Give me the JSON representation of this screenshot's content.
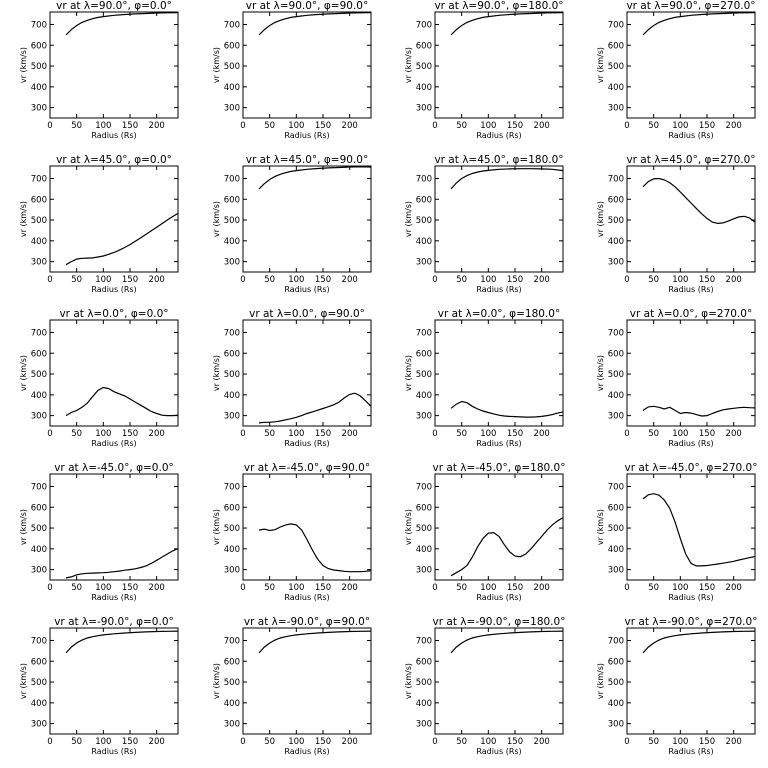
{
  "chart_data": [
    {
      "type": "line",
      "title": "vr at λ=90.0°, φ=0.0°",
      "xlabel": "Radius (Rs)",
      "ylabel": "vr (km/s)",
      "xlim": [
        0,
        240
      ],
      "ylim": [
        250,
        760
      ],
      "xticks": [
        0,
        50,
        100,
        150,
        200
      ],
      "yticks": [
        300,
        400,
        500,
        600,
        700
      ],
      "x": [
        30,
        40,
        50,
        60,
        70,
        80,
        90,
        100,
        120,
        140,
        160,
        180,
        200,
        220,
        240
      ],
      "y": [
        650,
        675,
        695,
        710,
        720,
        728,
        734,
        738,
        744,
        748,
        751,
        753,
        755,
        756,
        757
      ]
    },
    {
      "type": "line",
      "title": "vr at λ=90.0°, φ=90.0°",
      "xlabel": "Radius (Rs)",
      "ylabel": "vr (km/s)",
      "xlim": [
        0,
        240
      ],
      "ylim": [
        250,
        760
      ],
      "xticks": [
        0,
        50,
        100,
        150,
        200
      ],
      "yticks": [
        300,
        400,
        500,
        600,
        700
      ],
      "x": [
        30,
        40,
        50,
        60,
        70,
        80,
        90,
        100,
        120,
        140,
        160,
        180,
        200,
        220,
        240
      ],
      "y": [
        650,
        675,
        695,
        710,
        720,
        728,
        734,
        738,
        744,
        748,
        751,
        753,
        755,
        756,
        757
      ]
    },
    {
      "type": "line",
      "title": "vr at λ=90.0°, φ=180.0°",
      "xlabel": "Radius (Rs)",
      "ylabel": "vr (km/s)",
      "xlim": [
        0,
        240
      ],
      "ylim": [
        250,
        760
      ],
      "xticks": [
        0,
        50,
        100,
        150,
        200
      ],
      "yticks": [
        300,
        400,
        500,
        600,
        700
      ],
      "x": [
        30,
        40,
        50,
        60,
        70,
        80,
        90,
        100,
        120,
        140,
        160,
        180,
        200,
        220,
        240
      ],
      "y": [
        650,
        675,
        695,
        710,
        720,
        728,
        734,
        738,
        744,
        748,
        751,
        753,
        755,
        756,
        757
      ]
    },
    {
      "type": "line",
      "title": "vr at λ=90.0°, φ=270.0°",
      "xlabel": "Radius (Rs)",
      "ylabel": "vr (km/s)",
      "xlim": [
        0,
        240
      ],
      "ylim": [
        250,
        760
      ],
      "xticks": [
        0,
        50,
        100,
        150,
        200
      ],
      "yticks": [
        300,
        400,
        500,
        600,
        700
      ],
      "x": [
        30,
        40,
        50,
        60,
        70,
        80,
        90,
        100,
        120,
        140,
        160,
        180,
        200,
        220,
        240
      ],
      "y": [
        650,
        675,
        695,
        710,
        720,
        728,
        734,
        738,
        744,
        748,
        751,
        753,
        755,
        756,
        757
      ]
    },
    {
      "type": "line",
      "title": "vr at λ=45.0°, φ=0.0°",
      "xlabel": "Radius (Rs)",
      "ylabel": "vr (km/s)",
      "xlim": [
        0,
        240
      ],
      "ylim": [
        250,
        760
      ],
      "xticks": [
        0,
        50,
        100,
        150,
        200
      ],
      "yticks": [
        300,
        400,
        500,
        600,
        700
      ],
      "x": [
        30,
        40,
        50,
        60,
        70,
        80,
        90,
        100,
        110,
        120,
        130,
        140,
        150,
        160,
        170,
        180,
        190,
        200,
        210,
        220,
        230,
        240
      ],
      "y": [
        285,
        300,
        312,
        316,
        317,
        318,
        322,
        327,
        335,
        344,
        355,
        368,
        382,
        398,
        414,
        431,
        448,
        465,
        483,
        500,
        517,
        532
      ]
    },
    {
      "type": "line",
      "title": "vr at λ=45.0°, φ=90.0°",
      "xlabel": "Radius (Rs)",
      "ylabel": "vr (km/s)",
      "xlim": [
        0,
        240
      ],
      "ylim": [
        250,
        760
      ],
      "xticks": [
        0,
        50,
        100,
        150,
        200
      ],
      "yticks": [
        300,
        400,
        500,
        600,
        700
      ],
      "x": [
        30,
        40,
        50,
        60,
        70,
        80,
        90,
        100,
        120,
        140,
        160,
        180,
        200,
        220,
        240
      ],
      "y": [
        650,
        675,
        695,
        710,
        720,
        728,
        734,
        738,
        744,
        748,
        751,
        753,
        755,
        756,
        755
      ]
    },
    {
      "type": "line",
      "title": "vr at λ=45.0°, φ=180.0°",
      "xlabel": "Radius (Rs)",
      "ylabel": "vr (km/s)",
      "xlim": [
        0,
        240
      ],
      "ylim": [
        250,
        760
      ],
      "xticks": [
        0,
        50,
        100,
        150,
        200
      ],
      "yticks": [
        300,
        400,
        500,
        600,
        700
      ],
      "x": [
        30,
        40,
        50,
        60,
        70,
        80,
        90,
        100,
        120,
        140,
        160,
        180,
        200,
        220,
        240
      ],
      "y": [
        650,
        678,
        700,
        714,
        724,
        731,
        736,
        739,
        744,
        746,
        747,
        747,
        746,
        744,
        738
      ]
    },
    {
      "type": "line",
      "title": "vr at λ=45.0°, φ=270.0°",
      "xlabel": "Radius (Rs)",
      "ylabel": "vr (km/s)",
      "xlim": [
        0,
        240
      ],
      "ylim": [
        250,
        760
      ],
      "xticks": [
        0,
        50,
        100,
        150,
        200
      ],
      "yticks": [
        300,
        400,
        500,
        600,
        700
      ],
      "x": [
        30,
        40,
        50,
        60,
        70,
        80,
        90,
        100,
        110,
        120,
        130,
        140,
        150,
        160,
        170,
        180,
        190,
        200,
        210,
        220,
        230,
        240
      ],
      "y": [
        660,
        685,
        698,
        700,
        693,
        680,
        660,
        635,
        608,
        582,
        556,
        530,
        508,
        490,
        484,
        486,
        495,
        506,
        515,
        518,
        510,
        490
      ]
    },
    {
      "type": "line",
      "title": "vr at λ=0.0°, φ=0.0°",
      "xlabel": "Radius (Rs)",
      "ylabel": "vr (km/s)",
      "xlim": [
        0,
        240
      ],
      "ylim": [
        250,
        760
      ],
      "xticks": [
        0,
        50,
        100,
        150,
        200
      ],
      "yticks": [
        300,
        400,
        500,
        600,
        700
      ],
      "x": [
        30,
        40,
        50,
        60,
        70,
        80,
        90,
        100,
        110,
        120,
        130,
        140,
        150,
        160,
        170,
        180,
        190,
        200,
        210,
        220,
        230,
        240
      ],
      "y": [
        300,
        315,
        325,
        340,
        360,
        392,
        422,
        435,
        430,
        415,
        405,
        395,
        380,
        365,
        350,
        335,
        320,
        310,
        302,
        300,
        300,
        302
      ]
    },
    {
      "type": "line",
      "title": "vr at λ=0.0°, φ=90.0°",
      "xlabel": "Radius (Rs)",
      "ylabel": "vr (km/s)",
      "xlim": [
        0,
        240
      ],
      "ylim": [
        250,
        760
      ],
      "xticks": [
        0,
        50,
        100,
        150,
        200
      ],
      "yticks": [
        300,
        400,
        500,
        600,
        700
      ],
      "x": [
        30,
        40,
        50,
        60,
        70,
        80,
        90,
        100,
        110,
        120,
        130,
        140,
        150,
        160,
        170,
        180,
        190,
        200,
        210,
        220,
        230,
        240
      ],
      "y": [
        265,
        268,
        268,
        270,
        274,
        280,
        285,
        292,
        300,
        310,
        318,
        326,
        334,
        343,
        352,
        365,
        385,
        402,
        408,
        395,
        370,
        345
      ]
    },
    {
      "type": "line",
      "title": "vr at λ=0.0°, φ=180.0°",
      "xlabel": "Radius (Rs)",
      "ylabel": "vr (km/s)",
      "xlim": [
        0,
        240
      ],
      "ylim": [
        250,
        760
      ],
      "xticks": [
        0,
        50,
        100,
        150,
        200
      ],
      "yticks": [
        300,
        400,
        500,
        600,
        700
      ],
      "x": [
        30,
        40,
        50,
        60,
        70,
        80,
        90,
        100,
        110,
        120,
        130,
        140,
        150,
        160,
        170,
        180,
        190,
        200,
        210,
        220,
        230,
        240
      ],
      "y": [
        335,
        355,
        368,
        362,
        345,
        332,
        322,
        315,
        308,
        302,
        298,
        296,
        295,
        294,
        293,
        293,
        294,
        296,
        300,
        305,
        312,
        318
      ]
    },
    {
      "type": "line",
      "title": "vr at λ=0.0°, φ=270.0°",
      "xlabel": "Radius (Rs)",
      "ylabel": "vr (km/s)",
      "xlim": [
        0,
        240
      ],
      "ylim": [
        250,
        760
      ],
      "xticks": [
        0,
        50,
        100,
        150,
        200
      ],
      "yticks": [
        300,
        400,
        500,
        600,
        700
      ],
      "x": [
        30,
        40,
        50,
        60,
        70,
        80,
        90,
        100,
        110,
        120,
        130,
        140,
        150,
        160,
        170,
        180,
        190,
        200,
        210,
        220,
        230,
        240
      ],
      "y": [
        325,
        342,
        345,
        340,
        332,
        340,
        325,
        310,
        315,
        312,
        305,
        298,
        300,
        310,
        320,
        328,
        332,
        335,
        338,
        340,
        338,
        337
      ]
    },
    {
      "type": "line",
      "title": "vr at λ=-45.0°, φ=0.0°",
      "xlabel": "Radius (Rs)",
      "ylabel": "vr (km/s)",
      "xlim": [
        0,
        240
      ],
      "ylim": [
        250,
        760
      ],
      "xticks": [
        0,
        50,
        100,
        150,
        200
      ],
      "yticks": [
        300,
        400,
        500,
        600,
        700
      ],
      "x": [
        30,
        40,
        50,
        60,
        70,
        80,
        90,
        100,
        110,
        120,
        130,
        140,
        150,
        160,
        170,
        180,
        190,
        200,
        210,
        220,
        230,
        240
      ],
      "y": [
        260,
        265,
        275,
        280,
        282,
        283,
        284,
        285,
        287,
        290,
        293,
        297,
        300,
        304,
        310,
        318,
        330,
        345,
        360,
        375,
        390,
        402
      ]
    },
    {
      "type": "line",
      "title": "vr at λ=-45.0°, φ=90.0°",
      "xlabel": "Radius (Rs)",
      "ylabel": "vr (km/s)",
      "xlim": [
        0,
        240
      ],
      "ylim": [
        250,
        760
      ],
      "xticks": [
        0,
        50,
        100,
        150,
        200
      ],
      "yticks": [
        300,
        400,
        500,
        600,
        700
      ],
      "x": [
        30,
        40,
        50,
        60,
        70,
        80,
        90,
        100,
        110,
        120,
        130,
        140,
        150,
        160,
        170,
        180,
        190,
        200,
        210,
        220,
        230,
        240
      ],
      "y": [
        490,
        495,
        488,
        492,
        505,
        515,
        520,
        515,
        490,
        445,
        395,
        350,
        320,
        305,
        298,
        295,
        292,
        290,
        290,
        290,
        292,
        295
      ]
    },
    {
      "type": "line",
      "title": "vr at λ=-45.0°, φ=180.0°",
      "xlabel": "Radius (Rs)",
      "ylabel": "vr (km/s)",
      "xlim": [
        0,
        240
      ],
      "ylim": [
        250,
        760
      ],
      "xticks": [
        0,
        50,
        100,
        150,
        200
      ],
      "yticks": [
        300,
        400,
        500,
        600,
        700
      ],
      "x": [
        30,
        40,
        50,
        60,
        70,
        80,
        90,
        100,
        110,
        120,
        130,
        140,
        150,
        160,
        170,
        180,
        190,
        200,
        210,
        220,
        230,
        240
      ],
      "y": [
        270,
        285,
        300,
        320,
        360,
        410,
        450,
        475,
        478,
        460,
        420,
        385,
        365,
        362,
        375,
        400,
        430,
        460,
        490,
        515,
        535,
        550
      ]
    },
    {
      "type": "line",
      "title": "vr at λ=-45.0°, φ=270.0°",
      "xlabel": "Radius (Rs)",
      "ylabel": "vr (km/s)",
      "xlim": [
        0,
        240
      ],
      "ylim": [
        250,
        760
      ],
      "xticks": [
        0,
        50,
        100,
        150,
        200
      ],
      "yticks": [
        300,
        400,
        500,
        600,
        700
      ],
      "x": [
        30,
        40,
        50,
        60,
        70,
        80,
        90,
        100,
        110,
        120,
        130,
        140,
        150,
        160,
        170,
        180,
        190,
        200,
        210,
        220,
        230,
        240
      ],
      "y": [
        640,
        660,
        665,
        658,
        635,
        595,
        530,
        450,
        375,
        330,
        318,
        318,
        320,
        323,
        327,
        331,
        335,
        340,
        346,
        352,
        358,
        363
      ]
    },
    {
      "type": "line",
      "title": "vr at λ=-90.0°, φ=0.0°",
      "xlabel": "Radius (Rs)",
      "ylabel": "vr (km/s)",
      "xlim": [
        0,
        240
      ],
      "ylim": [
        250,
        760
      ],
      "xticks": [
        0,
        50,
        100,
        150,
        200
      ],
      "yticks": [
        300,
        400,
        500,
        600,
        700
      ],
      "x": [
        30,
        40,
        50,
        60,
        70,
        80,
        90,
        100,
        120,
        140,
        160,
        180,
        200,
        220,
        240
      ],
      "y": [
        640,
        668,
        688,
        702,
        712,
        718,
        723,
        727,
        732,
        736,
        739,
        741,
        743,
        744,
        745
      ]
    },
    {
      "type": "line",
      "title": "vr at λ=-90.0°, φ=90.0°",
      "xlabel": "Radius (Rs)",
      "ylabel": "vr (km/s)",
      "xlim": [
        0,
        240
      ],
      "ylim": [
        250,
        760
      ],
      "xticks": [
        0,
        50,
        100,
        150,
        200
      ],
      "yticks": [
        300,
        400,
        500,
        600,
        700
      ],
      "x": [
        30,
        40,
        50,
        60,
        70,
        80,
        90,
        100,
        120,
        140,
        160,
        180,
        200,
        220,
        240
      ],
      "y": [
        640,
        668,
        688,
        702,
        712,
        718,
        723,
        727,
        732,
        736,
        739,
        741,
        743,
        744,
        745
      ]
    },
    {
      "type": "line",
      "title": "vr at λ=-90.0°, φ=180.0°",
      "xlabel": "Radius (Rs)",
      "ylabel": "vr (km/s)",
      "xlim": [
        0,
        240
      ],
      "ylim": [
        250,
        760
      ],
      "xticks": [
        0,
        50,
        100,
        150,
        200
      ],
      "yticks": [
        300,
        400,
        500,
        600,
        700
      ],
      "x": [
        30,
        40,
        50,
        60,
        70,
        80,
        90,
        100,
        120,
        140,
        160,
        180,
        200,
        220,
        240
      ],
      "y": [
        640,
        668,
        688,
        702,
        712,
        718,
        723,
        727,
        732,
        736,
        739,
        741,
        743,
        744,
        745
      ]
    },
    {
      "type": "line",
      "title": "vr at λ=-90.0°, φ=270.0°",
      "xlabel": "Radius (Rs)",
      "ylabel": "vr (km/s)",
      "xlim": [
        0,
        240
      ],
      "ylim": [
        250,
        760
      ],
      "xticks": [
        0,
        50,
        100,
        150,
        200
      ],
      "yticks": [
        300,
        400,
        500,
        600,
        700
      ],
      "x": [
        30,
        40,
        50,
        60,
        70,
        80,
        90,
        100,
        120,
        140,
        160,
        180,
        200,
        220,
        240
      ],
      "y": [
        640,
        668,
        688,
        702,
        712,
        718,
        723,
        727,
        732,
        736,
        739,
        741,
        743,
        744,
        745
      ]
    }
  ]
}
